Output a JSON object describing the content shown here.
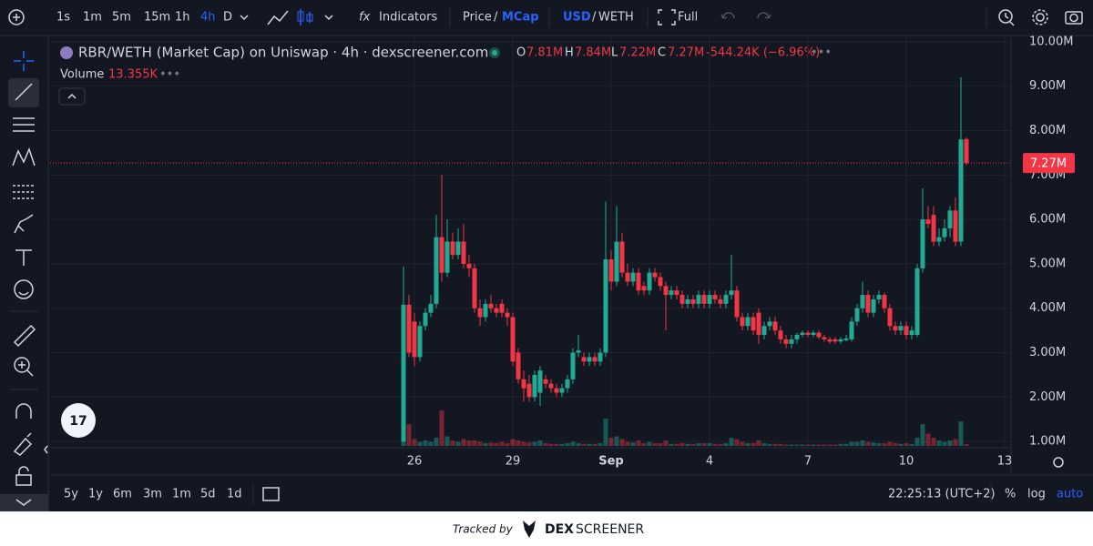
{
  "toolbar": {
    "intervals": [
      "1s",
      "1m",
      "5m",
      "15m",
      "1h",
      "4h",
      "D"
    ],
    "indicators": "Indicators",
    "price": "Price",
    "slash": "/",
    "mcap": "MCap",
    "usd": "USD",
    "weth": "WETH",
    "full": "Full"
  },
  "legend": {
    "title": "RBR/WETH (Market Cap) on Uniswap · 4h · dexscreener.com",
    "o": "O",
    "o_val": "7.81M",
    "h": "H",
    "h_val": "7.84M",
    "l": "L",
    "l_val": "7.22M",
    "c": "C",
    "c_val": "7.27M",
    "change": "-544.24K (−6.96%)",
    "volume": "Volume",
    "volume_val": "13.355K"
  },
  "bottom_bar": {
    "ranges": [
      "5y",
      "1y",
      "6m",
      "3m",
      "1m",
      "5d",
      "1d"
    ],
    "clock": "22:25:13 (UTC+2)",
    "percent": "%",
    "log": "log",
    "auto": "auto"
  },
  "footer": {
    "tracked": "Tracked by",
    "dex": "DEX",
    "screener": "SCREENER"
  },
  "chart_data": {
    "type": "candlestick",
    "grid": true,
    "up_color": "#22ab94",
    "down_color": "#f23645",
    "categories": [
      null,
      null,
      "26",
      null,
      null,
      null,
      null,
      null,
      null,
      null,
      null,
      null,
      null,
      null,
      null,
      null,
      null,
      null,
      null,
      null,
      "29",
      null,
      null,
      null,
      null,
      null,
      null,
      null,
      null,
      null,
      null,
      null,
      null,
      null,
      null,
      null,
      null,
      null,
      "Sep",
      null,
      null,
      null,
      null,
      null,
      null,
      null,
      null,
      null,
      null,
      null,
      null,
      null,
      null,
      null,
      null,
      null,
      "4",
      null,
      null,
      null,
      null,
      null,
      null,
      null,
      null,
      null,
      null,
      null,
      null,
      null,
      null,
      null,
      null,
      null,
      "7",
      null,
      null,
      null,
      null,
      null,
      null,
      null,
      null,
      null,
      null,
      null,
      null,
      null,
      null,
      null,
      null,
      null,
      "10",
      null,
      null,
      null,
      null,
      null,
      null,
      null,
      null,
      null,
      null,
      null,
      null,
      null,
      null,
      null,
      null,
      null,
      "13"
    ],
    "ohlc": [
      [
        1.0,
        4.94,
        0.98,
        4.08
      ],
      [
        4.08,
        4.3,
        2.9,
        3.0
      ],
      [
        3.7,
        3.9,
        2.7,
        2.9
      ],
      [
        2.9,
        3.7,
        2.8,
        3.6
      ],
      [
        3.6,
        4.0,
        3.5,
        3.9
      ],
      [
        3.9,
        4.3,
        3.8,
        4.1
      ],
      [
        4.1,
        6.1,
        4.0,
        5.6
      ],
      [
        5.6,
        7.0,
        4.6,
        4.8
      ],
      [
        4.8,
        6.0,
        4.7,
        5.5
      ],
      [
        5.5,
        5.7,
        5.1,
        5.2
      ],
      [
        5.2,
        5.8,
        5.1,
        5.5
      ],
      [
        5.5,
        5.9,
        4.9,
        5.0
      ],
      [
        5.0,
        5.2,
        4.7,
        4.9
      ],
      [
        4.9,
        5.0,
        3.9,
        4.0
      ],
      [
        4.0,
        4.2,
        3.6,
        3.8
      ],
      [
        3.8,
        4.2,
        3.7,
        4.1
      ],
      [
        4.1,
        4.3,
        3.9,
        4.0
      ],
      [
        4.0,
        4.1,
        3.8,
        3.9
      ],
      [
        4.1,
        4.2,
        3.8,
        3.9
      ],
      [
        3.9,
        4.0,
        3.6,
        3.8
      ],
      [
        3.8,
        3.9,
        2.7,
        2.8
      ],
      [
        3.0,
        3.1,
        2.3,
        2.4
      ],
      [
        2.4,
        2.6,
        1.9,
        2.2
      ],
      [
        2.3,
        2.5,
        1.9,
        2.0
      ],
      [
        2.0,
        2.6,
        1.9,
        2.5
      ],
      [
        2.1,
        2.7,
        1.8,
        2.6
      ],
      [
        2.4,
        2.5,
        2.2,
        2.3
      ],
      [
        2.3,
        2.4,
        2.1,
        2.2
      ],
      [
        2.2,
        2.3,
        2.0,
        2.1
      ],
      [
        2.1,
        2.3,
        2.0,
        2.2
      ],
      [
        2.2,
        2.5,
        2.1,
        2.4
      ],
      [
        2.4,
        3.1,
        2.3,
        3.0
      ],
      [
        3.0,
        3.4,
        2.9,
        3.05
      ],
      [
        2.9,
        3.0,
        2.7,
        2.8
      ],
      [
        2.8,
        3.0,
        2.7,
        2.9
      ],
      [
        2.9,
        3.0,
        2.7,
        2.8
      ],
      [
        2.8,
        3.1,
        2.7,
        3.0
      ],
      [
        3.0,
        6.4,
        2.9,
        5.1
      ],
      [
        5.1,
        5.3,
        4.4,
        4.6
      ],
      [
        4.6,
        6.3,
        4.5,
        5.5
      ],
      [
        5.5,
        5.7,
        4.7,
        4.8
      ],
      [
        4.8,
        5.0,
        4.5,
        4.6
      ],
      [
        4.6,
        4.9,
        4.5,
        4.8
      ],
      [
        4.8,
        4.9,
        4.3,
        4.4
      ],
      [
        4.5,
        4.6,
        4.3,
        4.4
      ],
      [
        4.4,
        4.9,
        4.3,
        4.8
      ],
      [
        4.8,
        4.9,
        4.6,
        4.7
      ],
      [
        4.7,
        4.8,
        4.4,
        4.5
      ],
      [
        4.5,
        4.6,
        3.5,
        4.3
      ],
      [
        4.3,
        4.5,
        4.2,
        4.4
      ],
      [
        4.4,
        4.5,
        4.2,
        4.3
      ],
      [
        4.3,
        4.4,
        4.0,
        4.1
      ],
      [
        4.1,
        4.3,
        4.0,
        4.2
      ],
      [
        4.2,
        4.3,
        4.0,
        4.1
      ],
      [
        4.1,
        4.4,
        4.0,
        4.3
      ],
      [
        4.3,
        4.4,
        4.0,
        4.1
      ],
      [
        4.1,
        4.4,
        4.0,
        4.3
      ],
      [
        4.3,
        4.4,
        4.1,
        4.2
      ],
      [
        4.2,
        4.3,
        4.0,
        4.1
      ],
      [
        4.1,
        4.4,
        4.0,
        4.3
      ],
      [
        4.3,
        5.2,
        4.2,
        4.4
      ],
      [
        4.4,
        4.5,
        3.7,
        3.8
      ],
      [
        3.8,
        3.9,
        3.5,
        3.6
      ],
      [
        3.6,
        3.9,
        3.5,
        3.8
      ],
      [
        3.8,
        3.9,
        3.4,
        3.5
      ],
      [
        3.9,
        4.0,
        3.2,
        3.4
      ],
      [
        3.4,
        3.7,
        3.3,
        3.6
      ],
      [
        3.6,
        3.8,
        3.5,
        3.7
      ],
      [
        3.7,
        3.8,
        3.4,
        3.5
      ],
      [
        3.5,
        3.6,
        3.2,
        3.3
      ],
      [
        3.3,
        3.4,
        3.1,
        3.2
      ],
      [
        3.2,
        3.4,
        3.1,
        3.3
      ],
      [
        3.3,
        3.45,
        3.2,
        3.4
      ],
      [
        3.4,
        3.5,
        3.35,
        3.45
      ],
      [
        3.45,
        3.5,
        3.35,
        3.4
      ],
      [
        3.4,
        3.5,
        3.35,
        3.45
      ],
      [
        3.45,
        3.5,
        3.3,
        3.35
      ],
      [
        3.35,
        3.4,
        3.25,
        3.3
      ],
      [
        3.3,
        3.35,
        3.2,
        3.25
      ],
      [
        3.3,
        3.35,
        3.2,
        3.25
      ],
      [
        3.25,
        3.35,
        3.2,
        3.3
      ],
      [
        3.28,
        3.4,
        3.25,
        3.32
      ],
      [
        3.3,
        3.8,
        3.25,
        3.7
      ],
      [
        3.7,
        4.1,
        3.6,
        4.0
      ],
      [
        4.0,
        4.6,
        3.9,
        4.3
      ],
      [
        4.3,
        4.4,
        3.8,
        3.9
      ],
      [
        3.9,
        4.3,
        3.8,
        4.2
      ],
      [
        4.2,
        4.4,
        4.1,
        4.3
      ],
      [
        4.3,
        4.35,
        3.9,
        4.0
      ],
      [
        4.0,
        4.1,
        3.5,
        3.6
      ],
      [
        3.6,
        3.7,
        3.4,
        3.5
      ],
      [
        3.5,
        3.7,
        3.4,
        3.6
      ],
      [
        3.6,
        3.7,
        3.3,
        3.4
      ],
      [
        3.4,
        3.6,
        3.3,
        3.5
      ],
      [
        3.4,
        5.0,
        3.35,
        4.9
      ],
      [
        4.9,
        6.7,
        4.8,
        6.0
      ],
      [
        6.0,
        6.3,
        5.8,
        5.9
      ],
      [
        6.1,
        6.3,
        5.4,
        5.5
      ],
      [
        5.5,
        5.8,
        5.4,
        5.6
      ],
      [
        5.6,
        6.0,
        5.5,
        5.8
      ],
      [
        5.8,
        6.3,
        5.6,
        6.2
      ],
      [
        6.2,
        6.5,
        5.4,
        5.5
      ],
      [
        5.5,
        9.2,
        5.4,
        7.8
      ],
      [
        7.81,
        7.84,
        7.22,
        7.27
      ],
      null,
      null,
      null,
      null,
      null,
      null,
      null
    ],
    "volume": [
      530,
      160,
      50,
      30,
      40,
      30,
      60,
      260,
      70,
      40,
      30,
      50,
      40,
      40,
      30,
      20,
      25,
      20,
      30,
      20,
      50,
      40,
      30,
      25,
      30,
      40,
      20,
      15,
      15,
      15,
      20,
      30,
      20,
      15,
      15,
      15,
      20,
      200,
      60,
      70,
      50,
      30,
      25,
      40,
      20,
      30,
      20,
      20,
      40,
      15,
      15,
      20,
      15,
      15,
      20,
      20,
      20,
      15,
      15,
      20,
      60,
      50,
      30,
      20,
      20,
      40,
      20,
      15,
      15,
      15,
      10,
      10,
      10,
      10,
      10,
      10,
      10,
      10,
      10,
      10,
      15,
      15,
      30,
      30,
      40,
      30,
      25,
      20,
      20,
      30,
      20,
      15,
      20,
      15,
      60,
      160,
      90,
      60,
      40,
      30,
      40,
      50,
      180,
      13.355,
      null,
      null,
      null,
      null,
      null,
      null,
      null
    ],
    "ylim": [
      0.86,
      10.12
    ],
    "yticks": [
      {
        "value": 1,
        "label": "1.00M"
      },
      {
        "value": 2,
        "label": "2.00M"
      },
      {
        "value": 3,
        "label": "3.00M"
      },
      {
        "value": 4,
        "label": "4.00M"
      },
      {
        "value": 5,
        "label": "5.00M"
      },
      {
        "value": 6,
        "label": "6.00M"
      },
      {
        "value": 7,
        "label": "7.00M"
      },
      {
        "value": 8,
        "label": "8.00M"
      },
      {
        "value": 9,
        "label": "9.00M"
      },
      {
        "value": 10,
        "label": "10.00M"
      }
    ],
    "last_price": {
      "value": 7.27,
      "label": "7.27M"
    }
  }
}
